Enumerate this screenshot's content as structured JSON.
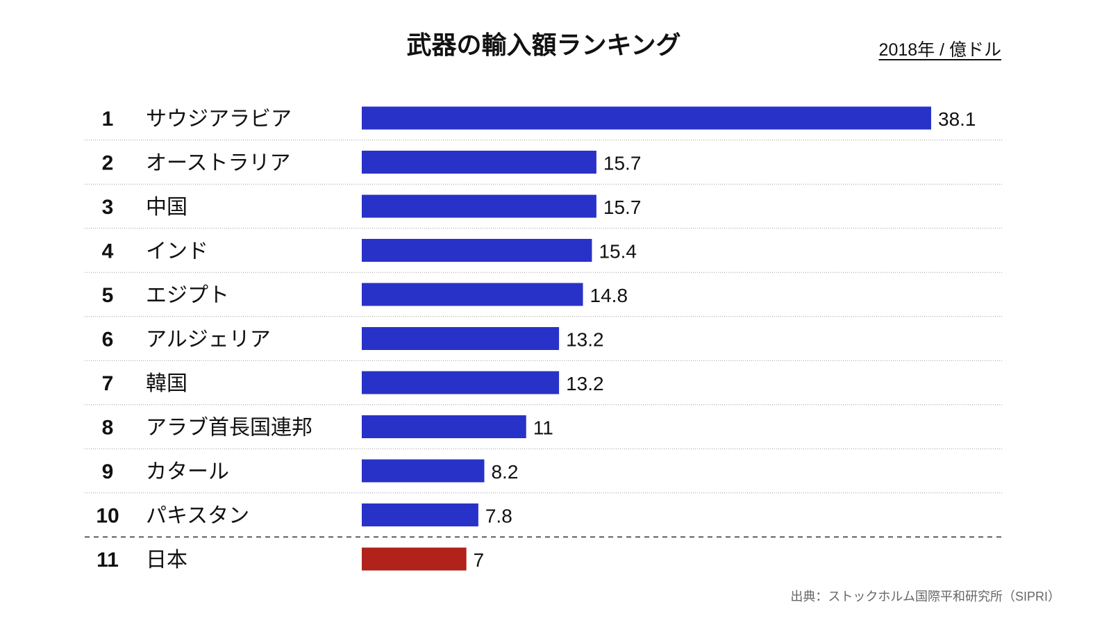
{
  "chart_data": {
    "type": "bar",
    "orientation": "horizontal",
    "title": "武器の輸入額ランキング",
    "unit_label": "2018年 / 億ドル",
    "source": "出典：ストックホルム国際平和研究所（SIPRI）",
    "ranks": [
      "1",
      "2",
      "3",
      "4",
      "5",
      "6",
      "7",
      "8",
      "9",
      "10",
      "11"
    ],
    "categories": [
      "サウジアラビア",
      "オーストラリア",
      "中国",
      "インド",
      "エジプト",
      "アルジェリア",
      "韓国",
      "アラブ首長国連邦",
      "カタール",
      "パキスタン",
      "日本"
    ],
    "values": [
      38.1,
      15.7,
      15.7,
      15.4,
      14.8,
      13.2,
      13.2,
      11,
      8.2,
      7.8,
      7
    ],
    "value_labels": [
      "38.1",
      "15.7",
      "15.7",
      "15.4",
      "14.8",
      "13.2",
      "13.2",
      "11",
      "8.2",
      "7.8",
      "7"
    ],
    "colors": {
      "default": "#2832c8",
      "highlight": "#b0221a"
    },
    "highlight_index": 10,
    "grid": false
  }
}
